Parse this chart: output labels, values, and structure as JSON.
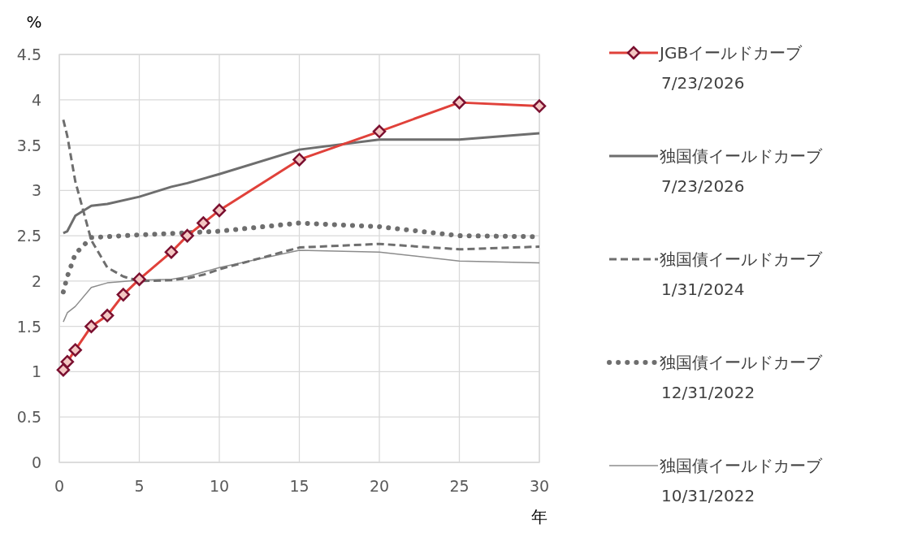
{
  "chart_data": {
    "type": "line",
    "xlabel": "年",
    "ylabel": "%",
    "xlim": [
      0,
      30
    ],
    "ylim": [
      0,
      4.5
    ],
    "xticks": [
      0,
      5,
      10,
      15,
      20,
      25,
      30
    ],
    "yticks": [
      0,
      0.5,
      1,
      1.5,
      2,
      2.5,
      3,
      3.5,
      4,
      4.5
    ],
    "grid": true,
    "legend": "right",
    "series": [
      {
        "name": "JGBイールドカーブ\n7/23/2026",
        "color": "#e0413a",
        "marker": "diamond",
        "line_style": "solid",
        "x": [
          0.25,
          0.5,
          1,
          2,
          3,
          4,
          5,
          7,
          8,
          9,
          10,
          15,
          20,
          25,
          30
        ],
        "values": [
          1.02,
          1.11,
          1.24,
          1.5,
          1.62,
          1.85,
          2.02,
          2.32,
          2.5,
          2.64,
          2.78,
          3.34,
          3.65,
          3.97,
          3.93
        ]
      },
      {
        "name": "独国債イールドカーブ\n7/23/2026",
        "color": "#6e6e6e",
        "marker": "none",
        "line_style": "solid",
        "x": [
          0.25,
          0.5,
          1,
          2,
          3,
          5,
          7,
          8,
          10,
          15,
          20,
          25,
          30
        ],
        "values": [
          2.53,
          2.55,
          2.72,
          2.83,
          2.85,
          2.93,
          3.04,
          3.08,
          3.18,
          3.45,
          3.56,
          3.56,
          3.63
        ]
      },
      {
        "name": "独国債イールドカーブ\n1/31/2024",
        "color": "#6e6e6e",
        "marker": "none",
        "line_style": "dashed",
        "x": [
          0.25,
          0.5,
          1,
          2,
          3,
          4,
          5,
          7,
          8,
          9,
          10,
          15,
          20,
          25,
          30
        ],
        "values": [
          3.78,
          3.6,
          3.1,
          2.45,
          2.15,
          2.05,
          2.0,
          2.01,
          2.03,
          2.07,
          2.13,
          2.37,
          2.41,
          2.35,
          2.38
        ]
      },
      {
        "name": "独国債イールドカーブ\n12/31/2022",
        "color": "#6e6e6e",
        "marker": "none",
        "line_style": "dotted",
        "x": [
          0.25,
          0.5,
          1,
          2,
          5,
          10,
          15,
          20,
          25,
          30
        ],
        "values": [
          1.88,
          2.05,
          2.3,
          2.48,
          2.51,
          2.55,
          2.64,
          2.6,
          2.5,
          2.49
        ]
      },
      {
        "name": "独国債イールドカーブ\n10/31/2022",
        "color": "#8c8c8c",
        "marker": "none",
        "line_style": "solid",
        "x": [
          0.25,
          0.5,
          1,
          2,
          3,
          5,
          7,
          8,
          10,
          15,
          20,
          25,
          30
        ],
        "values": [
          1.55,
          1.65,
          1.72,
          1.93,
          1.98,
          2.01,
          2.02,
          2.05,
          2.15,
          2.34,
          2.32,
          2.22,
          2.2
        ]
      }
    ]
  }
}
